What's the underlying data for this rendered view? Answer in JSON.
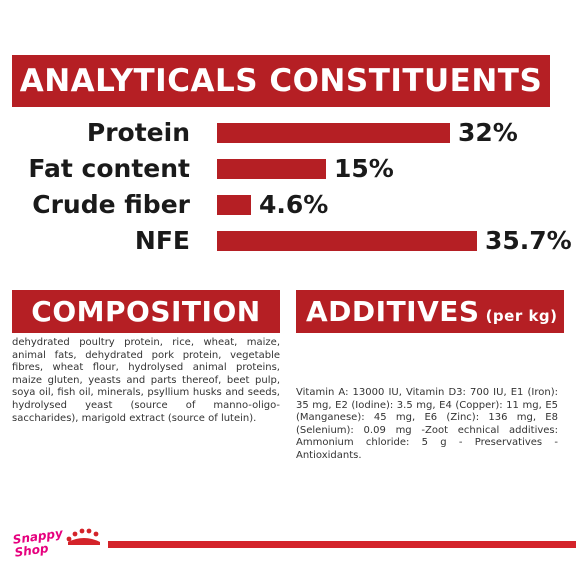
{
  "sections": {
    "analyticals_title": "ANALYTICALS CONSTITUENTS",
    "composition_title": "COMPOSITION",
    "additives_title": "ADDITIVES",
    "additives_unit": "(per kg)"
  },
  "chart_data": {
    "type": "bar",
    "orientation": "horizontal",
    "categories": [
      "Protein",
      "Fat content",
      "Crude fiber",
      "NFE"
    ],
    "values": [
      32,
      15,
      4.6,
      35.7
    ],
    "value_labels": [
      "32%",
      "15%",
      "4.6%",
      "35.7%"
    ],
    "unit": "%",
    "color": "#b51f24"
  },
  "composition_text": "dehydrated poultry protein, rice, wheat, maize, animal fats, dehydrated pork protein, vegetable fibres, wheat flour, hydrolysed animal proteins, maize gluten, yeasts and parts thereof, beet pulp, soya oil, fish oil, minerals, psyllium husks and seeds, hydrolysed yeast (source of manno-oligo-saccharides), marigold extract (source of lutein).",
  "additives_text": "Vitamin A: 13000 IU, Vitamin D3: 700 IU, E1 (Iron): 35 mg, E2 (Iodine): 3.5 mg, E4 (Copper): 11 mg, E5 (Manganese): 45 mg, E6 (Zinc): 136 mg, E8 (Selenium): 0.09 mg -Zoot echnical additives: Ammonium chloride: 5 g - Preservatives - Antioxidants.",
  "logo": {
    "line1": "Snappy",
    "line2": "Shop",
    "color": "#e6007e"
  },
  "icons": {
    "crown": "crown-icon"
  },
  "colors": {
    "brand_red": "#b51f24",
    "footer_red": "#d4232a"
  }
}
